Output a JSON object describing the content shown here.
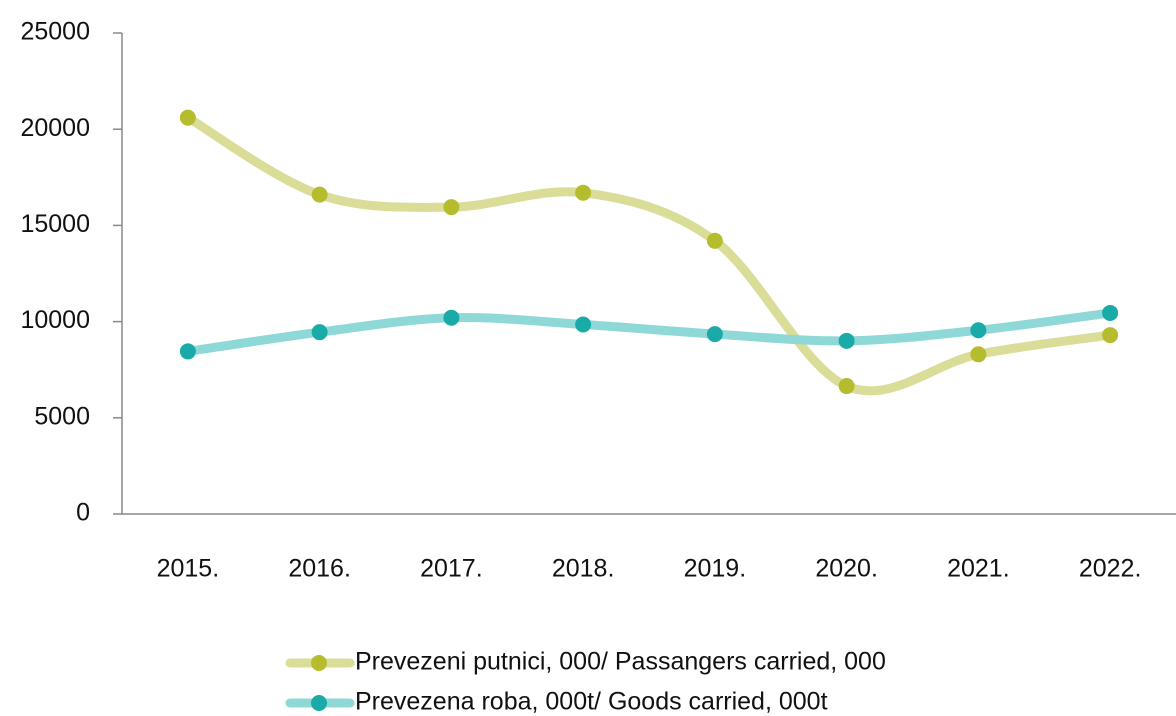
{
  "chart_data": {
    "type": "line",
    "smooth": true,
    "categories": [
      "2015.",
      "2016.",
      "2017.",
      "2018.",
      "2019.",
      "2020.",
      "2021.",
      "2022."
    ],
    "series": [
      {
        "name": "Prevezeni putnici, 000/ Passangers carried, 000",
        "color": "#b5bd2e",
        "line_color": "#dadd98",
        "values": [
          20600,
          16600,
          15950,
          16700,
          14200,
          6650,
          8300,
          9300
        ]
      },
      {
        "name": "Prevezena roba, 000t/ Goods carried, 000t",
        "color": "#1aaaa8",
        "line_color": "#8fd8d8",
        "values": [
          8450,
          9450,
          10200,
          9850,
          9350,
          9000,
          9550,
          10450
        ]
      }
    ],
    "ylim": [
      0,
      25000
    ],
    "yticks": [
      0,
      5000,
      10000,
      15000,
      20000,
      25000
    ],
    "grid": false,
    "legend": "bottom"
  }
}
